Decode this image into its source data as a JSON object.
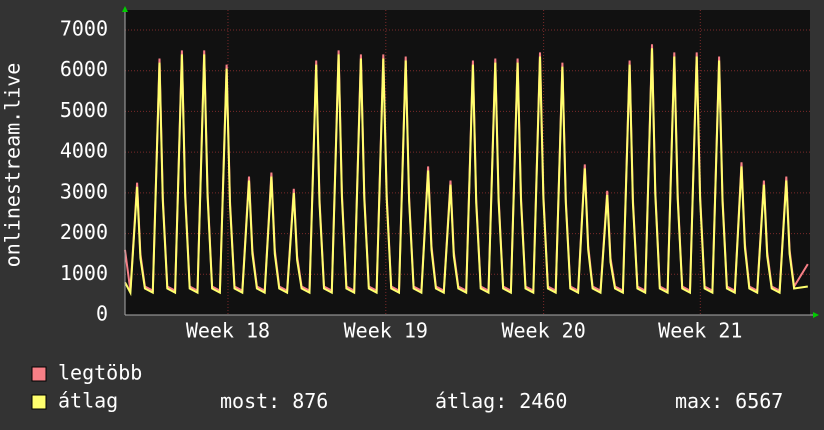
{
  "chart_data": {
    "type": "line",
    "y_label": "onlinestream.live",
    "xlim": [
      0,
      30.6
    ],
    "xticks": [
      {
        "value": 4.6,
        "label": "Week 18"
      },
      {
        "value": 11.65,
        "label": "Week 19"
      },
      {
        "value": 18.7,
        "label": "Week 20"
      },
      {
        "value": 25.7,
        "label": "Week 21"
      }
    ],
    "ylim": [
      0,
      7000
    ],
    "yticks": [
      0,
      1000,
      2000,
      3000,
      4000,
      5000,
      6000,
      7000
    ],
    "grid": true,
    "x": [
      0,
      0.24,
      0.54,
      0.69,
      0.89,
      1.24,
      1.54,
      1.69,
      1.89,
      2.24,
      2.54,
      2.69,
      2.89,
      3.24,
      3.54,
      3.69,
      3.89,
      4.24,
      4.54,
      4.69,
      4.89,
      5.24,
      5.54,
      5.69,
      5.89,
      6.24,
      6.54,
      6.69,
      6.89,
      7.24,
      7.54,
      7.69,
      7.89,
      8.24,
      8.54,
      8.69,
      8.89,
      9.24,
      9.54,
      9.69,
      9.89,
      10.24,
      10.54,
      10.69,
      10.89,
      11.24,
      11.54,
      11.69,
      11.89,
      12.24,
      12.54,
      12.69,
      12.89,
      13.24,
      13.54,
      13.69,
      13.89,
      14.24,
      14.54,
      14.69,
      14.89,
      15.24,
      15.54,
      15.69,
      15.89,
      16.24,
      16.54,
      16.69,
      16.89,
      17.24,
      17.54,
      17.69,
      17.89,
      18.24,
      18.54,
      18.69,
      18.89,
      19.24,
      19.54,
      19.69,
      19.89,
      20.24,
      20.54,
      20.69,
      20.89,
      21.24,
      21.54,
      21.69,
      21.89,
      22.24,
      22.54,
      22.69,
      22.89,
      23.24,
      23.54,
      23.69,
      23.89,
      24.24,
      24.54,
      24.69,
      24.89,
      25.24,
      25.54,
      25.69,
      25.89,
      26.24,
      26.54,
      26.69,
      26.89,
      27.24,
      27.54,
      27.69,
      27.89,
      28.24,
      28.54,
      28.69,
      28.89,
      29.24,
      29.54,
      29.69,
      29.89,
      30.5
    ],
    "series": [
      {
        "name": "legtöbb",
        "color": "#f77f86",
        "values": [
          1600,
          600,
          3250,
          1500,
          700,
          600,
          6300,
          2900,
          700,
          600,
          6500,
          3000,
          700,
          600,
          6500,
          3000,
          700,
          600,
          6150,
          2800,
          700,
          600,
          3400,
          1600,
          700,
          600,
          3500,
          1600,
          700,
          600,
          3100,
          1450,
          700,
          600,
          6250,
          2850,
          700,
          600,
          6500,
          3000,
          700,
          600,
          6400,
          2950,
          700,
          600,
          6400,
          2950,
          700,
          600,
          6350,
          2900,
          700,
          600,
          3650,
          1700,
          700,
          600,
          3300,
          1550,
          700,
          600,
          6250,
          2850,
          700,
          600,
          6300,
          2900,
          700,
          600,
          6300,
          2900,
          700,
          600,
          6450,
          2950,
          700,
          600,
          6200,
          2850,
          700,
          600,
          3700,
          1700,
          700,
          600,
          3050,
          1400,
          700,
          600,
          6250,
          2850,
          700,
          600,
          6650,
          3050,
          700,
          600,
          6450,
          2950,
          700,
          600,
          6450,
          2950,
          700,
          600,
          6350,
          2900,
          700,
          600,
          3750,
          1750,
          700,
          600,
          3300,
          1550,
          700,
          600,
          3400,
          1600,
          700,
          1250
        ]
      },
      {
        "name": "átlag",
        "color": "#ffff6e",
        "values": [
          800,
          550,
          3150,
          1400,
          650,
          550,
          6200,
          2800,
          650,
          550,
          6400,
          2900,
          650,
          550,
          6400,
          2900,
          650,
          550,
          6050,
          2700,
          650,
          550,
          3300,
          1500,
          650,
          550,
          3400,
          1500,
          650,
          550,
          3000,
          1350,
          650,
          550,
          6150,
          2750,
          650,
          550,
          6400,
          2900,
          650,
          550,
          6300,
          2850,
          650,
          550,
          6300,
          2850,
          650,
          550,
          6250,
          2800,
          650,
          550,
          3550,
          1600,
          650,
          550,
          3200,
          1450,
          650,
          550,
          6150,
          2750,
          650,
          550,
          6200,
          2800,
          650,
          550,
          6200,
          2800,
          650,
          550,
          6350,
          2850,
          650,
          550,
          6100,
          2750,
          650,
          550,
          3600,
          1600,
          650,
          550,
          2950,
          1300,
          650,
          550,
          6150,
          2750,
          650,
          550,
          6550,
          2950,
          650,
          550,
          6350,
          2850,
          650,
          550,
          6350,
          2850,
          650,
          550,
          6250,
          2800,
          650,
          550,
          3650,
          1650,
          650,
          550,
          3200,
          1450,
          650,
          550,
          3300,
          1500,
          650,
          700
        ]
      }
    ],
    "stats": [
      {
        "label": "most:",
        "value": 876
      },
      {
        "label": "átlag:",
        "value": 2460
      },
      {
        "label": "max:",
        "value": 6567
      }
    ]
  }
}
